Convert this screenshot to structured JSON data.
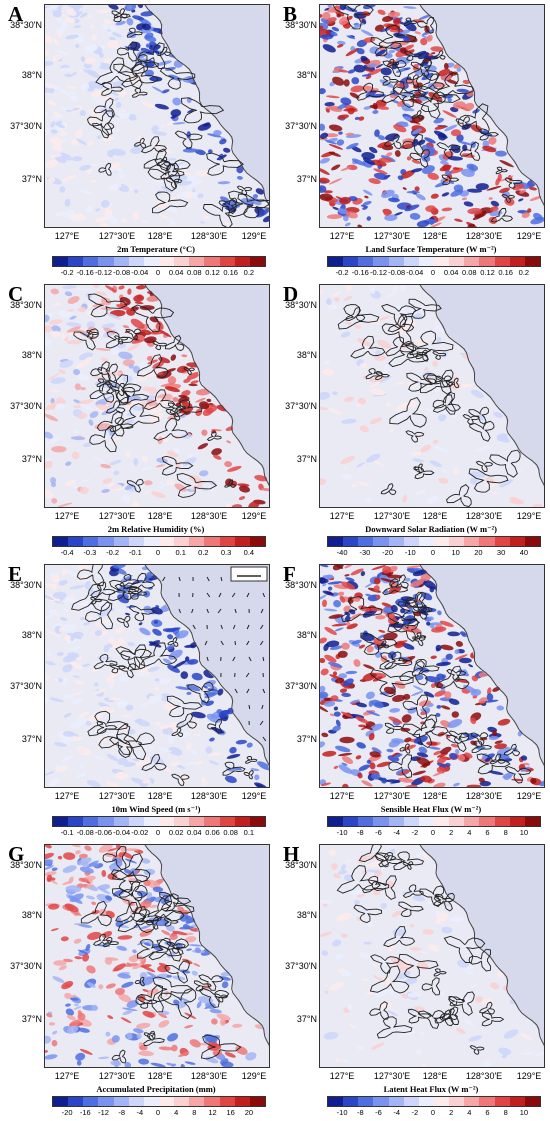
{
  "lat_labels": [
    "38°30'N",
    "38°N",
    "37°30'N",
    "37°N"
  ],
  "lon_labels": [
    "127°E",
    "127°30'E",
    "128°E",
    "128°30'E",
    "129°E"
  ],
  "colorbar_colors": [
    "#0f1f8f",
    "#2a45c8",
    "#4f6fe0",
    "#7a93ee",
    "#a4b5f5",
    "#cdd6fa",
    "#ebeefd",
    "#fdebeb",
    "#fad0d0",
    "#f5a6a6",
    "#ee7878",
    "#e04545",
    "#c41f1f",
    "#8b0a0a"
  ],
  "panels": [
    {
      "letter": "A",
      "title": "2m Temperature (°C)",
      "ticks": [
        "-0.2",
        "-0.16",
        "-0.12",
        "-0.08",
        "-0.04",
        "0",
        "0.04",
        "0.08",
        "0.12",
        "0.16",
        "0.2"
      ],
      "dominant": "blue-coastal"
    },
    {
      "letter": "B",
      "title": "Land Surface Temperature (W m⁻²)",
      "ticks": [
        "-0.2",
        "-0.16",
        "-0.12",
        "-0.08",
        "-0.04",
        "0",
        "0.04",
        "0.08",
        "0.12",
        "0.16",
        "0.2"
      ],
      "dominant": "strong-mixed"
    },
    {
      "letter": "C",
      "title": "2m Relative Humidity (%)",
      "ticks": [
        "-0.4",
        "-0.3",
        "-0.2",
        "-0.1",
        "0",
        "0.1",
        "0.2",
        "0.3",
        "0.4"
      ],
      "dominant": "red-coastal"
    },
    {
      "letter": "D",
      "title": "Downward Solar Radiation (W m⁻²)",
      "ticks": [
        "-40",
        "-30",
        "-20",
        "-10",
        "0",
        "10",
        "20",
        "30",
        "40"
      ],
      "dominant": "weak"
    },
    {
      "letter": "E",
      "title": "10m Wind Speed (m s⁻¹)",
      "ticks": [
        "-0.1",
        "-0.08",
        "-0.06",
        "-0.04",
        "-0.02",
        "0",
        "0.02",
        "0.04",
        "0.06",
        "0.08",
        "0.1"
      ],
      "dominant": "blue-coastal"
    },
    {
      "letter": "F",
      "title": "Sensible Heat Flux (W m⁻²)",
      "ticks": [
        "-10",
        "-8",
        "-6",
        "-4",
        "-2",
        "0",
        "2",
        "4",
        "6",
        "8",
        "10"
      ],
      "dominant": "strong-mixed"
    },
    {
      "letter": "G",
      "title": "Accumulated Precipitation (mm)",
      "ticks": [
        "-20",
        "-16",
        "-12",
        "-8",
        "-4",
        "0",
        "4",
        "8",
        "12",
        "16",
        "20"
      ],
      "dominant": "bands"
    },
    {
      "letter": "H",
      "title": "Latent Heat Flux (W m⁻²)",
      "ticks": [
        "-10",
        "-8",
        "-6",
        "-4",
        "-2",
        "0",
        "2",
        "4",
        "6",
        "8",
        "10"
      ],
      "dominant": "weak"
    }
  ]
}
